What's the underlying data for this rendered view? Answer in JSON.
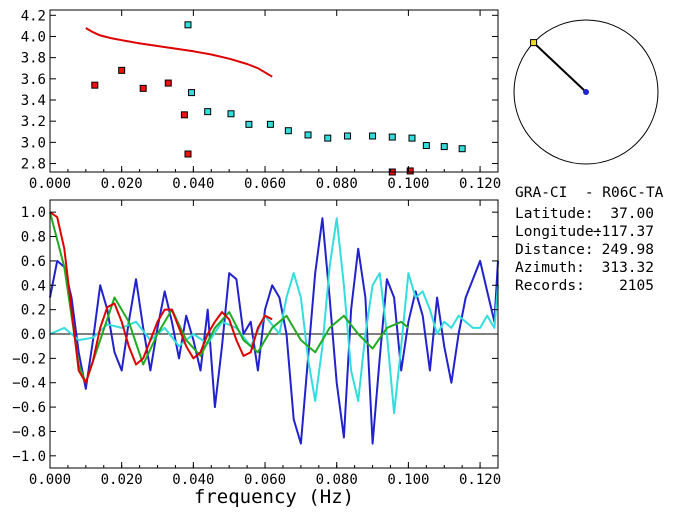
{
  "chart_data": [
    {
      "type": "scatter",
      "xlim": [
        0.0,
        0.125
      ],
      "ylim": [
        2.72,
        4.25
      ],
      "xticks": [
        "0.000",
        "0.020",
        "0.040",
        "0.060",
        "0.080",
        "0.100",
        "0.120"
      ],
      "yticks": [
        "2.8",
        "3.0",
        "3.2",
        "3.4",
        "3.6",
        "3.8",
        "4.0",
        "4.2"
      ],
      "grid": false,
      "series": [
        {
          "type": "line",
          "color": "#dd0000",
          "x": [
            0.01,
            0.012,
            0.014,
            0.017,
            0.02,
            0.025,
            0.03,
            0.035,
            0.04,
            0.045,
            0.05,
            0.055,
            0.058,
            0.062
          ],
          "y": [
            4.08,
            4.04,
            4.01,
            3.985,
            3.965,
            3.935,
            3.91,
            3.885,
            3.86,
            3.83,
            3.79,
            3.74,
            3.7,
            3.62
          ]
        },
        {
          "type": "scatter",
          "color": "#ee1111",
          "x": [
            0.0125,
            0.02,
            0.026,
            0.033,
            0.0375,
            0.0385,
            0.0955,
            0.1005
          ],
          "y": [
            3.54,
            3.68,
            3.51,
            3.56,
            3.26,
            2.89,
            2.72,
            2.73
          ]
        },
        {
          "type": "scatter",
          "color": "#33dddd",
          "x": [
            0.0385,
            0.0395,
            0.044,
            0.0505,
            0.0555,
            0.0615,
            0.0665,
            0.072,
            0.0775,
            0.083,
            0.09,
            0.0955,
            0.101,
            0.105,
            0.11,
            0.115
          ],
          "y": [
            4.11,
            3.47,
            3.29,
            3.27,
            3.17,
            3.17,
            3.11,
            3.07,
            3.04,
            3.06,
            3.06,
            3.05,
            3.04,
            2.97,
            2.96,
            2.94
          ]
        }
      ]
    },
    {
      "type": "line",
      "xlabel": "frequency (Hz)",
      "xlim": [
        0.0,
        0.125
      ],
      "ylim": [
        -1.1,
        1.1
      ],
      "xticks": [
        "0.000",
        "0.020",
        "0.040",
        "0.060",
        "0.080",
        "0.100",
        "0.120"
      ],
      "yticks": [
        "1.0",
        "0.8",
        "0.6",
        "0.4",
        "0.2",
        "0.0",
        "−0.2",
        "−0.4",
        "−0.6",
        "−0.8",
        "−1.0"
      ],
      "grid": false,
      "zero_line": true,
      "series": [
        {
          "color": "#2222cc",
          "x": [
            0.0,
            0.002,
            0.004,
            0.006,
            0.008,
            0.01,
            0.012,
            0.014,
            0.016,
            0.018,
            0.02,
            0.022,
            0.024,
            0.026,
            0.028,
            0.03,
            0.032,
            0.034,
            0.036,
            0.038,
            0.04,
            0.042,
            0.044,
            0.046,
            0.048,
            0.05,
            0.052,
            0.054,
            0.056,
            0.058,
            0.06,
            0.062,
            0.064,
            0.066,
            0.068,
            0.07,
            0.072,
            0.074,
            0.076,
            0.078,
            0.08,
            0.082,
            0.084,
            0.086,
            0.088,
            0.09,
            0.092,
            0.094,
            0.096,
            0.098,
            0.1,
            0.102,
            0.104,
            0.106,
            0.108,
            0.11,
            0.112,
            0.114,
            0.116,
            0.118,
            0.12,
            0.122,
            0.124,
            0.125
          ],
          "y": [
            0.3,
            0.6,
            0.55,
            0.3,
            -0.15,
            -0.45,
            -0.05,
            0.4,
            0.2,
            -0.15,
            -0.3,
            0.1,
            0.45,
            0.05,
            -0.3,
            0.05,
            0.35,
            0.1,
            -0.2,
            0.15,
            -0.05,
            -0.3,
            0.2,
            -0.6,
            -0.1,
            0.5,
            0.45,
            0.0,
            0.1,
            -0.3,
            0.2,
            0.4,
            0.3,
            0.0,
            -0.7,
            -0.9,
            -0.2,
            0.5,
            0.95,
            0.3,
            -0.4,
            -0.85,
            0.2,
            0.7,
            0.3,
            -0.9,
            -0.2,
            0.45,
            0.3,
            -0.3,
            0.1,
            0.35,
            0.15,
            -0.3,
            0.3,
            -0.1,
            -0.4,
            0.0,
            0.3,
            0.45,
            0.6,
            0.35,
            0.1,
            0.6
          ]
        },
        {
          "color": "#33dddd",
          "x": [
            0.0,
            0.004,
            0.008,
            0.012,
            0.016,
            0.02,
            0.024,
            0.028,
            0.032,
            0.036,
            0.04,
            0.044,
            0.048,
            0.052,
            0.056,
            0.06,
            0.064,
            0.066,
            0.068,
            0.07,
            0.072,
            0.074,
            0.076,
            0.078,
            0.08,
            0.082,
            0.084,
            0.086,
            0.088,
            0.09,
            0.092,
            0.094,
            0.096,
            0.098,
            0.1,
            0.102,
            0.104,
            0.106,
            0.108,
            0.11,
            0.112,
            0.114,
            0.116,
            0.118,
            0.12,
            0.122,
            0.124,
            0.125
          ],
          "y": [
            0.0,
            0.05,
            -0.05,
            -0.03,
            0.08,
            0.05,
            0.1,
            -0.05,
            0.05,
            -0.1,
            0.0,
            -0.08,
            0.1,
            0.05,
            -0.1,
            0.15,
            0.0,
            0.3,
            0.5,
            0.3,
            -0.2,
            -0.55,
            -0.1,
            0.55,
            0.95,
            0.4,
            -0.3,
            -0.55,
            0.0,
            0.4,
            0.5,
            0.0,
            -0.65,
            -0.1,
            0.5,
            0.3,
            0.35,
            0.2,
            0.0,
            0.1,
            0.05,
            0.15,
            0.1,
            0.05,
            0.05,
            0.15,
            0.05,
            0.4
          ]
        },
        {
          "color": "#22aa22",
          "x": [
            0.0,
            0.004,
            0.008,
            0.01,
            0.014,
            0.018,
            0.022,
            0.026,
            0.03,
            0.034,
            0.038,
            0.042,
            0.046,
            0.05,
            0.054,
            0.058,
            0.062,
            0.066,
            0.07,
            0.074,
            0.078,
            0.082,
            0.086,
            0.09,
            0.094,
            0.098,
            0.1
          ],
          "y": [
            1.0,
            0.55,
            -0.25,
            -0.4,
            -0.05,
            0.3,
            0.1,
            -0.25,
            0.0,
            0.2,
            -0.05,
            -0.18,
            0.05,
            0.18,
            -0.05,
            -0.15,
            0.05,
            0.15,
            -0.05,
            -0.15,
            0.05,
            0.15,
            0.0,
            -0.12,
            0.05,
            0.1,
            0.05
          ]
        },
        {
          "color": "#dd0000",
          "x": [
            0.0,
            0.002,
            0.004,
            0.006,
            0.008,
            0.01,
            0.012,
            0.014,
            0.016,
            0.018,
            0.02,
            0.022,
            0.024,
            0.026,
            0.028,
            0.03,
            0.032,
            0.034,
            0.036,
            0.038,
            0.04,
            0.042,
            0.044,
            0.046,
            0.048,
            0.05,
            0.052,
            0.054,
            0.056,
            0.058,
            0.06,
            0.062
          ],
          "y": [
            1.0,
            0.96,
            0.7,
            0.2,
            -0.3,
            -0.4,
            -0.22,
            0.05,
            0.22,
            0.25,
            0.1,
            -0.1,
            -0.25,
            -0.2,
            -0.05,
            0.1,
            0.2,
            0.2,
            0.05,
            -0.1,
            -0.2,
            -0.15,
            0.0,
            0.1,
            0.18,
            0.12,
            -0.05,
            -0.18,
            -0.15,
            0.05,
            0.15,
            0.12
          ]
        }
      ]
    }
  ],
  "station": {
    "name_line": "GRA-CI  - R06C-TA",
    "latitude_label": "Latitude:",
    "latitude_value": "37.00",
    "longitude_label": "Longitude:",
    "longitude_value": "−117.37",
    "distance_label": "Distance:",
    "distance_value": "249.98",
    "azimuth_label": "Azimuth:",
    "azimuth_value": "313.32",
    "records_label": "Records:",
    "records_value": "2105"
  },
  "compass": {
    "azimuth_deg": 313.32,
    "needle_color": "#000000",
    "center_color": "#2222cc",
    "tip_color": "#eedd22"
  }
}
